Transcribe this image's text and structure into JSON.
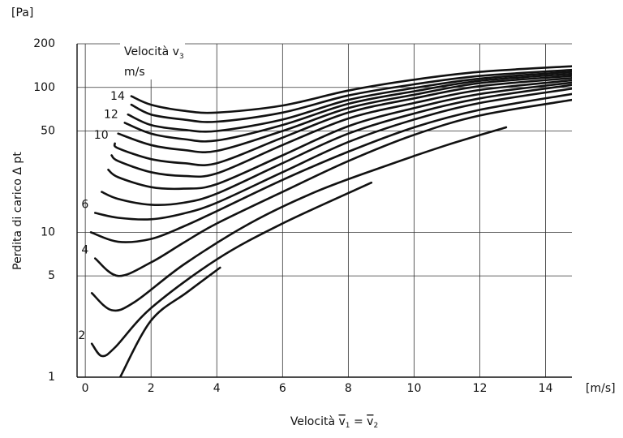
{
  "chart_data": {
    "type": "line",
    "y_unit": "[Pa]",
    "x_unit": "[m/s]",
    "ylabel": "Perdita di carico Δ pt",
    "xlabel_parts": [
      "Velocità ",
      "v",
      "1",
      " = ",
      "v",
      "2"
    ],
    "curve_title_parts": [
      "Velocità v",
      "3"
    ],
    "curve_unit": "m/s",
    "y_scale": "log",
    "grid": true,
    "color": "#111111",
    "xlim": [
      -0.25,
      14.8
    ],
    "xticks": [
      0,
      2,
      4,
      6,
      8,
      10,
      12,
      14
    ],
    "ylim": [
      1,
      200
    ],
    "yticks": [
      1,
      5,
      10,
      50,
      100,
      200
    ],
    "series": [
      {
        "name": null,
        "x": [
          1.06,
          2,
          3.1,
          4.1
        ],
        "values": [
          1.0,
          2.46,
          3.86,
          5.7
        ]
      },
      {
        "name": "2",
        "x": [
          0.2,
          0.5,
          0.9,
          2,
          4,
          6,
          8.7
        ],
        "values": [
          1.7,
          1.4,
          1.6,
          3.0,
          6.5,
          11.5,
          22
        ]
      },
      {
        "name": null,
        "x": [
          0.2,
          0.8,
          1.5,
          3,
          5,
          7,
          9,
          11,
          12.8
        ],
        "values": [
          3.8,
          2.9,
          3.3,
          6,
          11.5,
          19,
          28,
          40,
          53
        ]
      },
      {
        "name": "4",
        "x": [
          0.3,
          1,
          2,
          3,
          4,
          6,
          8,
          10,
          12,
          14.8
        ],
        "values": [
          6.6,
          5.0,
          6.2,
          8.5,
          11.5,
          19,
          31,
          47,
          64,
          82
        ]
      },
      {
        "name": null,
        "x": [
          0.17,
          1,
          2,
          3,
          4,
          6,
          8,
          10,
          12,
          14.8
        ],
        "values": [
          10,
          8.6,
          9,
          11,
          14,
          23,
          36,
          53,
          70,
          90
        ]
      },
      {
        "name": "6",
        "x": [
          0.3,
          1,
          2,
          3,
          4,
          6,
          8,
          10,
          12,
          14.8
        ],
        "values": [
          13.6,
          12.6,
          12.3,
          13.5,
          16,
          26,
          42,
          60,
          78,
          98
        ]
      },
      {
        "name": null,
        "x": [
          0.5,
          1,
          2,
          3,
          4,
          6,
          8,
          10,
          12,
          14.8
        ],
        "values": [
          19,
          17,
          15.5,
          16,
          18.5,
          30,
          48,
          66,
          84,
          104
        ]
      },
      {
        "name": null,
        "x": [
          0.7,
          1,
          2,
          3,
          4,
          6,
          8,
          10,
          12,
          14.8
        ],
        "values": [
          27,
          24,
          20.5,
          20,
          21.5,
          34,
          54,
          72,
          90,
          108
        ]
      },
      {
        "name": null,
        "x": [
          0.8,
          1,
          2,
          3,
          4,
          6,
          8,
          10,
          12,
          14.8
        ],
        "values": [
          34,
          31,
          26,
          24.5,
          25.5,
          40,
          61,
          78,
          96,
          112
        ]
      },
      {
        "name": "10",
        "x": [
          0.9,
          1,
          2,
          3,
          4,
          6,
          8,
          10,
          12,
          14.8
        ],
        "values": [
          41,
          38,
          32,
          30,
          30,
          45,
          67,
          84,
          102,
          116
        ]
      },
      {
        "name": null,
        "x": [
          1.0,
          2,
          3,
          4,
          6,
          8,
          10,
          12,
          14.8
        ],
        "values": [
          48,
          40,
          37,
          36.5,
          50,
          72,
          89,
          107,
          120
        ]
      },
      {
        "name": "12",
        "x": [
          1.2,
          2,
          3,
          4,
          6,
          8,
          10,
          12,
          14.8
        ],
        "values": [
          57,
          48,
          44,
          43,
          55,
          77,
          94,
          111,
          124
        ]
      },
      {
        "name": null,
        "x": [
          1.3,
          2,
          3,
          4,
          6,
          8,
          10,
          12,
          14.8
        ],
        "values": [
          65,
          55,
          51,
          50,
          60,
          82,
          99,
          115,
          128
        ]
      },
      {
        "name": "14",
        "x": [
          1.4,
          2,
          3,
          4,
          6,
          8,
          10,
          12,
          14.8
        ],
        "values": [
          76,
          65,
          60,
          58,
          67,
          88,
          105,
          120,
          132
        ]
      },
      {
        "name": null,
        "x": [
          1.4,
          2,
          3,
          4,
          6,
          8,
          10,
          12,
          14.8
        ],
        "values": [
          87,
          76,
          69,
          67,
          75,
          95,
          113,
          128,
          140
        ]
      }
    ]
  }
}
